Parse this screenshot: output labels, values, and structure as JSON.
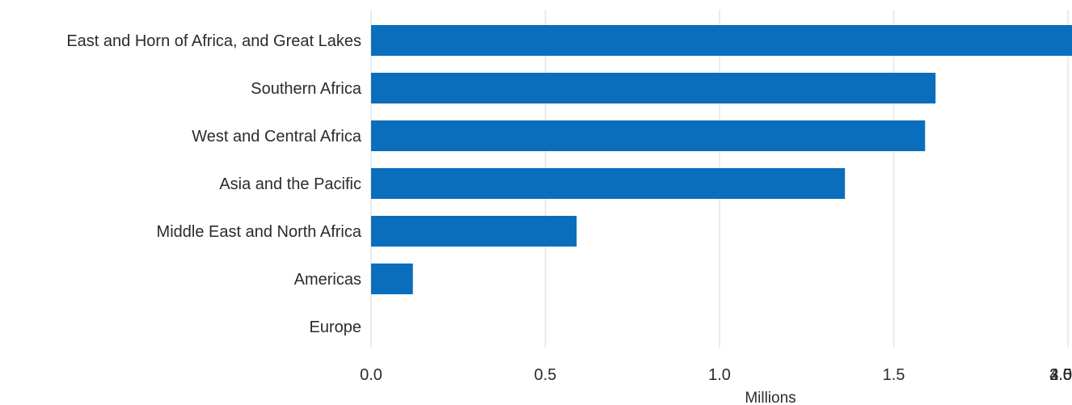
{
  "chart_data": {
    "type": "bar",
    "orientation": "horizontal",
    "categories": [
      "East and Horn of Africa, and Great Lakes",
      "Southern Africa",
      "West and Central Africa",
      "Asia and the Pacific",
      "Middle East and North Africa",
      "Americas",
      "Europe"
    ],
    "values": [
      4.05,
      1.62,
      1.59,
      1.36,
      0.59,
      0.12,
      0.0
    ],
    "xlabel": "Millions",
    "ylabel": "",
    "title": "",
    "xlim": [
      0,
      4.0
    ],
    "xticks": [
      "0.0",
      "0.5",
      "1.0",
      "1.5",
      "2.0",
      "2.5",
      "3.0",
      "3.5",
      "4.0"
    ],
    "bar_color": "#0a6ebd",
    "grid": "vertical",
    "legend": "none"
  }
}
